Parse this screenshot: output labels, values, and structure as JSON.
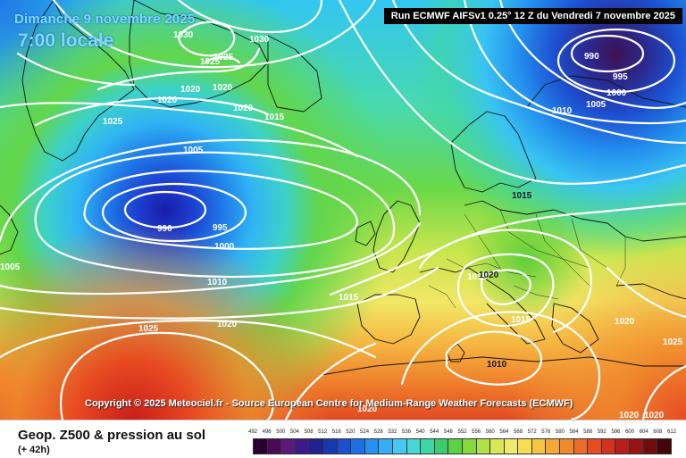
{
  "header": {
    "date": "Dimanche 9 novembre 2025",
    "time": "7:00 locale",
    "run": "Run ECMWF AIFSv1 0.25° 12 Z du Vendredi 7 novembre 2025"
  },
  "copyright": "Copyright © 2025 Meteociel.fr - Source European Centre for Medium-Range Weather Forecasts (ECMWF)",
  "footer": {
    "title": "Geop. Z500 & pression au sol",
    "step": "(+ 42h)"
  },
  "legend": {
    "labels": [
      "492",
      "496",
      "500",
      "504",
      "508",
      "512",
      "516",
      "520",
      "524",
      "528",
      "532",
      "536",
      "540",
      "544",
      "548",
      "552",
      "556",
      "560",
      "564",
      "568",
      "572",
      "576",
      "580",
      "584",
      "588",
      "592",
      "596",
      "600",
      "604",
      "608",
      "612"
    ],
    "colors": [
      "#2b0030",
      "#4a0a55",
      "#5a1a7a",
      "#3c1a8a",
      "#20208f",
      "#1838b0",
      "#1a50d0",
      "#1e6fe6",
      "#2890f0",
      "#35aef5",
      "#46c8f2",
      "#48d6d6",
      "#3fd6a6",
      "#3ccc6e",
      "#5ad246",
      "#86d83c",
      "#b3e042",
      "#d8e858",
      "#f0ea6a",
      "#f7dc54",
      "#f7c544",
      "#f4a838",
      "#f08a2e",
      "#ec6b28",
      "#e84a22",
      "#d2321e",
      "#b81e1a",
      "#961414",
      "#6e0c10",
      "#440608"
    ]
  },
  "isobars": [
    {
      "text": "1030",
      "cls": "light"
    },
    {
      "text": "1025",
      "cls": "light"
    },
    {
      "text": "1025",
      "cls": "light"
    },
    {
      "text": "1030",
      "cls": "light"
    },
    {
      "text": "1020",
      "cls": "light"
    },
    {
      "text": "1020",
      "cls": "light"
    },
    {
      "text": "1020",
      "cls": "light"
    },
    {
      "text": "1025",
      "cls": "light"
    },
    {
      "text": "1020",
      "cls": "light"
    },
    {
      "text": "1015",
      "cls": "light"
    },
    {
      "text": "1005",
      "cls": "light"
    },
    {
      "text": "990",
      "cls": "light"
    },
    {
      "text": "995",
      "cls": "light"
    },
    {
      "text": "1000",
      "cls": "light"
    },
    {
      "text": "1010",
      "cls": "light"
    },
    {
      "text": "1005",
      "cls": "light"
    },
    {
      "text": "1015",
      "cls": "light"
    },
    {
      "text": "1020",
      "cls": "light"
    },
    {
      "text": "1025",
      "cls": "light"
    },
    {
      "text": "990",
      "cls": "light"
    },
    {
      "text": "995",
      "cls": "light"
    },
    {
      "text": "1000",
      "cls": "light"
    },
    {
      "text": "1005",
      "cls": "light"
    },
    {
      "text": "1010",
      "cls": "light"
    },
    {
      "text": "1015",
      "cls": "dark"
    },
    {
      "text": "1015",
      "cls": "light"
    },
    {
      "text": "1020",
      "cls": "dark"
    },
    {
      "text": "1015",
      "cls": "light"
    },
    {
      "text": "1010",
      "cls": "dark"
    },
    {
      "text": "1020",
      "cls": "light"
    },
    {
      "text": "1025",
      "cls": "light"
    },
    {
      "text": "1020",
      "cls": "light"
    },
    {
      "text": "1020",
      "cls": "light"
    },
    {
      "text": "1020",
      "cls": "light"
    }
  ]
}
